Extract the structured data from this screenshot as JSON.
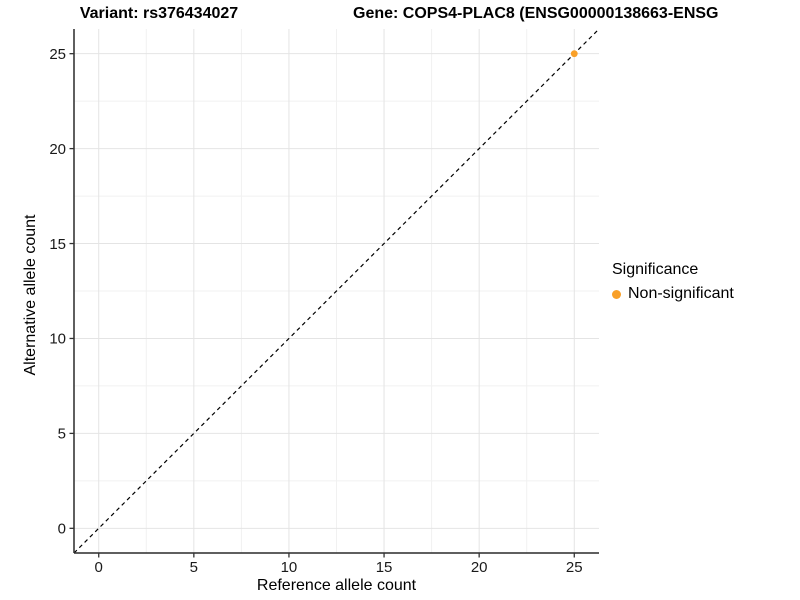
{
  "header": {
    "variant_title": "Variant: rs376434027",
    "gene_title": "Gene: COPS4-PLAC8 (ENSG00000138663-ENSG"
  },
  "chart_data": {
    "type": "scatter",
    "xlabel": "Reference allele count",
    "ylabel": "Alternative allele count",
    "xlim": [
      -1.3,
      26.3
    ],
    "ylim": [
      -1.3,
      26.3
    ],
    "x_ticks": [
      0,
      5,
      10,
      15,
      20,
      25
    ],
    "y_ticks": [
      0,
      5,
      10,
      15,
      20,
      25
    ],
    "x_minor_ticks": [
      2.5,
      7.5,
      12.5,
      17.5,
      22.5
    ],
    "y_minor_ticks": [
      2.5,
      7.5,
      12.5,
      17.5,
      22.5
    ],
    "grid": true,
    "identity_line": {
      "style": "dashed",
      "from": [
        -1.3,
        -1.3
      ],
      "to": [
        26.3,
        26.3
      ],
      "color": "#000000"
    },
    "points": [
      {
        "x": 25,
        "y": 25,
        "series": "Non-significant"
      }
    ],
    "series": [
      {
        "name": "Non-significant",
        "color": "#F9A028"
      }
    ],
    "legend": {
      "title": "Significance",
      "position": "right",
      "entries": [
        {
          "label": "Non-significant",
          "color": "#F9A028"
        }
      ]
    },
    "colors": {
      "grid_major": "#e4e4e4",
      "grid_minor": "#f1f1f1",
      "axis_line": "#2a2a2a",
      "tick_mark": "#333333",
      "tick_label": "#1a1a1a"
    }
  }
}
